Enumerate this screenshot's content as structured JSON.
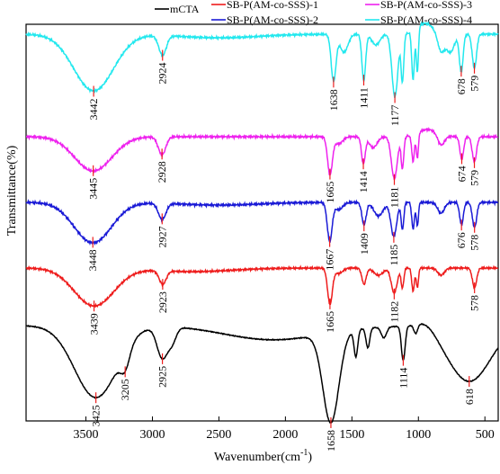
{
  "chart_data": {
    "type": "line",
    "title": "",
    "xlabel_main": "Wavenumber(cm",
    "xlabel_sup": "-1",
    "xlabel_close": ")",
    "ylabel": "Transmittance(%)",
    "xlim": [
      3950,
      400
    ],
    "x_reversed": true,
    "yticks_shown": false,
    "xticks": [
      "3500",
      "3000",
      "2500",
      "2000",
      "1500",
      "1000",
      "500"
    ],
    "legend": [
      {
        "name": "mCTA",
        "color": "#000000"
      },
      {
        "name": "SB-P(AM-co-SSS)-1",
        "color": "#ee1c1c"
      },
      {
        "name": "SB-P(AM-co-SSS)-3",
        "color": "#ee22ee"
      },
      {
        "name": "SB-P(AM-co-SSS)-2",
        "color": "#1a1ad6"
      },
      {
        "name": "SB-P(AM-co-SSS)-4",
        "color": "#22e8ee"
      }
    ],
    "series": [
      {
        "name": "SB-P(AM-co-SSS)-4",
        "color": "#22e8ee",
        "peaks": [
          "3442",
          "2924",
          "1638",
          "1411",
          "1177",
          "678",
          "579"
        ]
      },
      {
        "name": "SB-P(AM-co-SSS)-3",
        "color": "#ee22ee",
        "peaks": [
          "3445",
          "2928",
          "1665",
          "1414",
          "1181",
          "674",
          "579"
        ]
      },
      {
        "name": "SB-P(AM-co-SSS)-2",
        "color": "#1a1ad6",
        "peaks": [
          "3448",
          "2927",
          "1667",
          "1409",
          "1185",
          "676",
          "578"
        ]
      },
      {
        "name": "SB-P(AM-co-SSS)-1",
        "color": "#ee1c1c",
        "peaks": [
          "3439",
          "2923",
          "1665",
          "1182",
          "578"
        ]
      },
      {
        "name": "mCTA",
        "color": "#000000",
        "peaks": [
          "3425",
          "3205",
          "2925",
          "1658",
          "1114",
          "618"
        ]
      }
    ]
  }
}
